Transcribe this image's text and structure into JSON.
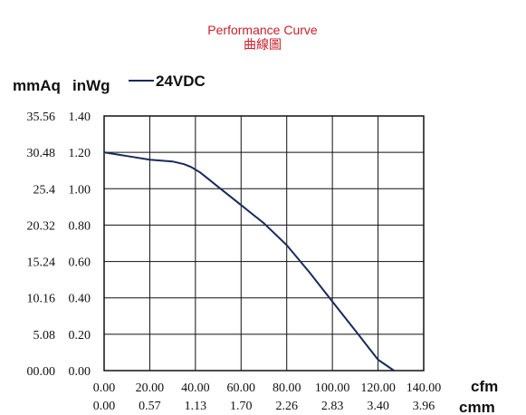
{
  "chart_data": {
    "type": "line",
    "title": "Performance Curve",
    "subtitle": "曲線圖",
    "title_color": "#c8202a",
    "line_color": "#1a2a5a",
    "grid": true,
    "y_unit_primary": "mmAq",
    "y_unit_secondary": "inWg",
    "x_unit_primary": "cfm",
    "x_unit_secondary": "cmm",
    "xlim": [
      0,
      140
    ],
    "ylim": [
      0,
      1.4
    ],
    "x_ticks": [
      "0.00",
      "20.00",
      "40.00",
      "60.00",
      "80.00",
      "100.00",
      "120.00",
      "140.00"
    ],
    "x_ticks_secondary": [
      "0.00",
      "0.57",
      "1.13",
      "1.70",
      "2.26",
      "2.83",
      "3.40",
      "3.96"
    ],
    "y_ticks": [
      "0.00",
      "0.20",
      "0.40",
      "0.60",
      "0.80",
      "1.00",
      "1.20",
      "1.40"
    ],
    "y_ticks_secondary": [
      "00.00",
      "5.08",
      "10.16",
      "15.24",
      "20.32",
      "25.4",
      "30.48",
      "35.56"
    ],
    "series": [
      {
        "name": "24VDC",
        "x": [
          0,
          10,
          20,
          30,
          35,
          38,
          42,
          46,
          50,
          55,
          60,
          65,
          70,
          80,
          90,
          100,
          110,
          120,
          127
        ],
        "y": [
          1.2,
          1.18,
          1.16,
          1.15,
          1.135,
          1.12,
          1.09,
          1.05,
          1.01,
          0.96,
          0.91,
          0.86,
          0.81,
          0.69,
          0.54,
          0.38,
          0.22,
          0.06,
          -0.01
        ]
      }
    ]
  }
}
